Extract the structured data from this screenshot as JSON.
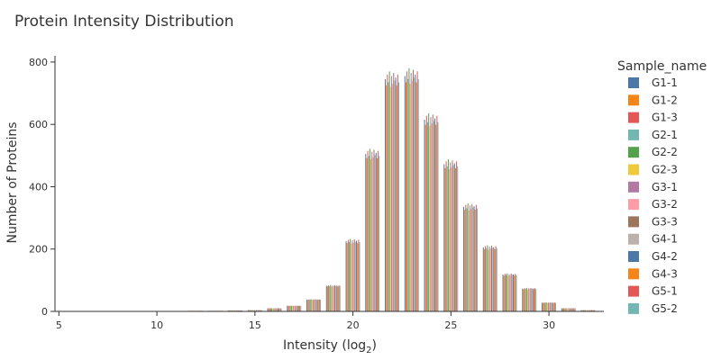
{
  "chart_data": {
    "type": "bar",
    "title": "Protein Intensity Distribution",
    "xlabel": "Intensity (log",
    "xlabel_sub": "2",
    "xlabel_close": ")",
    "ylabel": "Number of Proteins",
    "xlim": [
      4.8,
      32.8
    ],
    "ylim": [
      0,
      820
    ],
    "x_ticks": [
      5,
      10,
      15,
      20,
      25,
      30
    ],
    "y_ticks": [
      0,
      200,
      400,
      600,
      800
    ],
    "grid": false,
    "legend_title": "Sample_name",
    "legend_position": "right",
    "series": [
      {
        "name": "G1-1",
        "color": "#4c78a8",
        "offset": 0
      },
      {
        "name": "G1-2",
        "color": "#f58518",
        "offset": -4
      },
      {
        "name": "G1-3",
        "color": "#e45756",
        "offset": 3
      },
      {
        "name": "G2-1",
        "color": "#72b7b2",
        "offset": -2
      },
      {
        "name": "G2-2",
        "color": "#54a24b",
        "offset": 5
      },
      {
        "name": "G2-3",
        "color": "#eeca3b",
        "offset": -5
      },
      {
        "name": "G3-1",
        "color": "#b279a2",
        "offset": 2
      },
      {
        "name": "G3-2",
        "color": "#ff9da6",
        "offset": -3
      },
      {
        "name": "G3-3",
        "color": "#9d755d",
        "offset": 4
      },
      {
        "name": "G4-1",
        "color": "#bab0ac",
        "offset": -1
      },
      {
        "name": "G4-2",
        "color": "#4c78a8",
        "offset": 1
      },
      {
        "name": "G4-3",
        "color": "#f58518",
        "offset": -4
      },
      {
        "name": "G5-1",
        "color": "#e45756",
        "offset": 3
      },
      {
        "name": "G5-2",
        "color": "#72b7b2",
        "offset": -2
      }
    ],
    "bins": [
      {
        "x": 5,
        "value": 0
      },
      {
        "x": 6,
        "value": 0
      },
      {
        "x": 7,
        "value": 0
      },
      {
        "x": 8,
        "value": 0
      },
      {
        "x": 9,
        "value": 1
      },
      {
        "x": 10,
        "value": 1
      },
      {
        "x": 11,
        "value": 1
      },
      {
        "x": 12,
        "value": 2
      },
      {
        "x": 13,
        "value": 2
      },
      {
        "x": 14,
        "value": 3
      },
      {
        "x": 15,
        "value": 4
      },
      {
        "x": 16,
        "value": 10
      },
      {
        "x": 17,
        "value": 18
      },
      {
        "x": 18,
        "value": 38
      },
      {
        "x": 19,
        "value": 82
      },
      {
        "x": 20,
        "value": 225
      },
      {
        "x": 21,
        "value": 505
      },
      {
        "x": 22,
        "value": 745
      },
      {
        "x": 23,
        "value": 755
      },
      {
        "x": 24,
        "value": 615
      },
      {
        "x": 25,
        "value": 472
      },
      {
        "x": 26,
        "value": 335
      },
      {
        "x": 27,
        "value": 205
      },
      {
        "x": 28,
        "value": 118
      },
      {
        "x": 29,
        "value": 73
      },
      {
        "x": 30,
        "value": 28
      },
      {
        "x": 31,
        "value": 10
      },
      {
        "x": 32,
        "value": 4
      }
    ]
  }
}
